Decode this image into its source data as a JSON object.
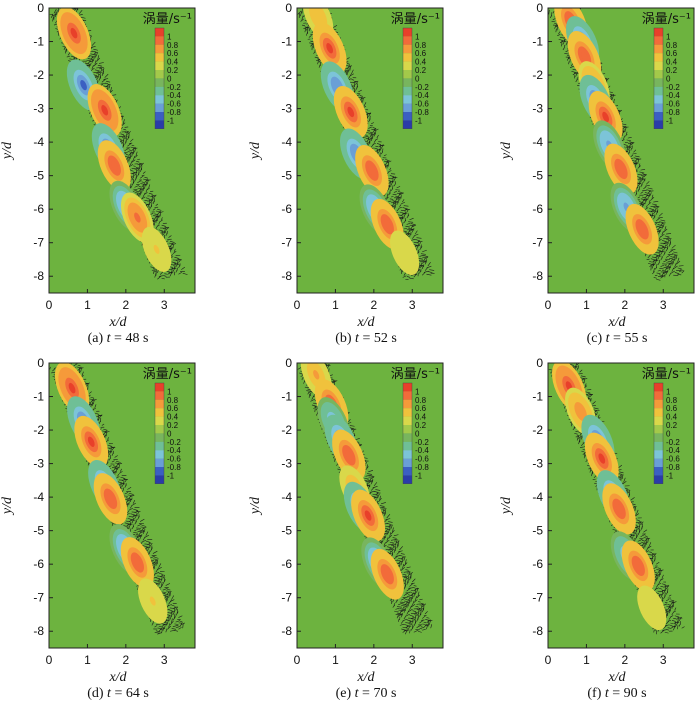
{
  "chart_data": {
    "type": "heatmap",
    "shared": {
      "xlabel": "x/d",
      "ylabel": "y/d",
      "xlim": [
        0,
        3.8
      ],
      "ylim": [
        -8.5,
        0
      ],
      "xticks": [
        "0",
        "1",
        "2",
        "3"
      ],
      "yticks": [
        "0",
        "-1",
        "-2",
        "-3",
        "-4",
        "-5",
        "-6",
        "-7",
        "-8"
      ],
      "legend": {
        "title": "涡量/s⁻¹",
        "levels": [
          "1",
          "0.8",
          "0.6",
          "0.4",
          "0.2",
          "0",
          "-0.2",
          "-0.4",
          "-0.6",
          "-0.8",
          "-1"
        ],
        "colors": [
          "#e8402a",
          "#f26b3a",
          "#f59a3a",
          "#f0c23c",
          "#d9d84a",
          "#a3c94a",
          "#78b55e",
          "#6fbf96",
          "#7cc4d8",
          "#6a9fd6",
          "#3b5fc2",
          "#2a3ca8"
        ]
      }
    },
    "panels": [
      {
        "caption_pre": "(a) ",
        "var": "t",
        "caption_post": " = 48 s",
        "vortices": [
          {
            "x": 0.65,
            "y": -0.75,
            "w": 1.0
          },
          {
            "x": 0.9,
            "y": -2.3,
            "w": -0.9
          },
          {
            "x": 1.45,
            "y": -3.05,
            "w": 1.0
          },
          {
            "x": 1.55,
            "y": -4.2,
            "w": -0.9
          },
          {
            "x": 1.7,
            "y": -4.7,
            "w": 0.85
          },
          {
            "x": 2.0,
            "y": -5.9,
            "w": -0.8
          },
          {
            "x": 2.3,
            "y": -6.25,
            "w": 0.8
          },
          {
            "x": 2.8,
            "y": -7.2,
            "w": 0.35
          }
        ]
      },
      {
        "caption_pre": "(b) ",
        "var": "t",
        "caption_post": " = 52 s",
        "vortices": [
          {
            "x": 0.55,
            "y": -0.25,
            "w": 0.45
          },
          {
            "x": 0.85,
            "y": -1.2,
            "w": 0.95
          },
          {
            "x": 1.05,
            "y": -2.35,
            "w": -0.85
          },
          {
            "x": 1.4,
            "y": -3.1,
            "w": 0.95
          },
          {
            "x": 1.55,
            "y": -4.35,
            "w": -0.85
          },
          {
            "x": 1.95,
            "y": -4.85,
            "w": 0.9
          },
          {
            "x": 2.05,
            "y": -6.0,
            "w": -0.75
          },
          {
            "x": 2.35,
            "y": -6.45,
            "w": 0.85
          },
          {
            "x": 2.8,
            "y": -7.3,
            "w": 0.3
          }
        ]
      },
      {
        "caption_pre": "(c) ",
        "var": "t",
        "caption_post": " = 55 s",
        "vortices": [
          {
            "x": 0.6,
            "y": -0.4,
            "w": 0.9
          },
          {
            "x": 0.9,
            "y": -1.0,
            "w": -0.85
          },
          {
            "x": 0.95,
            "y": -1.45,
            "w": 0.9
          },
          {
            "x": 1.2,
            "y": -2.3,
            "w": 0.6
          },
          {
            "x": 1.25,
            "y": -2.75,
            "w": -0.85
          },
          {
            "x": 1.5,
            "y": -3.25,
            "w": 0.95
          },
          {
            "x": 1.6,
            "y": -4.1,
            "w": -0.8
          },
          {
            "x": 1.9,
            "y": -4.8,
            "w": 0.85
          },
          {
            "x": 2.05,
            "y": -5.95,
            "w": -0.75
          },
          {
            "x": 2.45,
            "y": -6.6,
            "w": 0.85
          }
        ]
      },
      {
        "caption_pre": "(d) ",
        "var": "t",
        "caption_post": " = 64 s",
        "vortices": [
          {
            "x": 0.6,
            "y": -0.75,
            "w": 1.0
          },
          {
            "x": 0.9,
            "y": -1.75,
            "w": -0.85
          },
          {
            "x": 1.1,
            "y": -2.35,
            "w": 0.95
          },
          {
            "x": 1.45,
            "y": -3.65,
            "w": -0.85
          },
          {
            "x": 1.6,
            "y": -4.05,
            "w": 0.9
          },
          {
            "x": 2.0,
            "y": -5.55,
            "w": -0.8
          },
          {
            "x": 2.3,
            "y": -5.95,
            "w": 0.85
          },
          {
            "x": 2.7,
            "y": -7.1,
            "w": 0.35
          }
        ]
      },
      {
        "caption_pre": "(e) ",
        "var": "t",
        "caption_post": " = 70 s",
        "vortices": [
          {
            "x": 0.5,
            "y": -0.35,
            "w": 0.55
          },
          {
            "x": 0.9,
            "y": -1.25,
            "w": 0.9
          },
          {
            "x": 0.95,
            "y": -1.75,
            "w": -0.7
          },
          {
            "x": 1.15,
            "y": -2.3,
            "w": -0.85
          },
          {
            "x": 1.35,
            "y": -2.75,
            "w": 0.9
          },
          {
            "x": 1.5,
            "y": -3.75,
            "w": 0.5
          },
          {
            "x": 1.65,
            "y": -4.3,
            "w": -0.85
          },
          {
            "x": 1.85,
            "y": -4.55,
            "w": 0.95
          },
          {
            "x": 2.1,
            "y": -5.95,
            "w": -0.8
          },
          {
            "x": 2.35,
            "y": -6.3,
            "w": 0.85
          }
        ]
      },
      {
        "caption_pre": "(f) ",
        "var": "t",
        "caption_post": " = 90 s",
        "vortices": [
          {
            "x": 0.55,
            "y": -0.7,
            "w": 1.0
          },
          {
            "x": 0.85,
            "y": -1.45,
            "w": 0.6
          },
          {
            "x": 1.3,
            "y": -2.3,
            "w": -0.85
          },
          {
            "x": 1.4,
            "y": -2.85,
            "w": 0.95
          },
          {
            "x": 1.7,
            "y": -3.95,
            "w": -0.85
          },
          {
            "x": 1.85,
            "y": -4.35,
            "w": 0.9
          },
          {
            "x": 2.05,
            "y": -5.75,
            "w": -0.7
          },
          {
            "x": 2.35,
            "y": -6.05,
            "w": 0.85
          },
          {
            "x": 2.7,
            "y": -7.3,
            "w": 0.3
          }
        ]
      }
    ]
  }
}
